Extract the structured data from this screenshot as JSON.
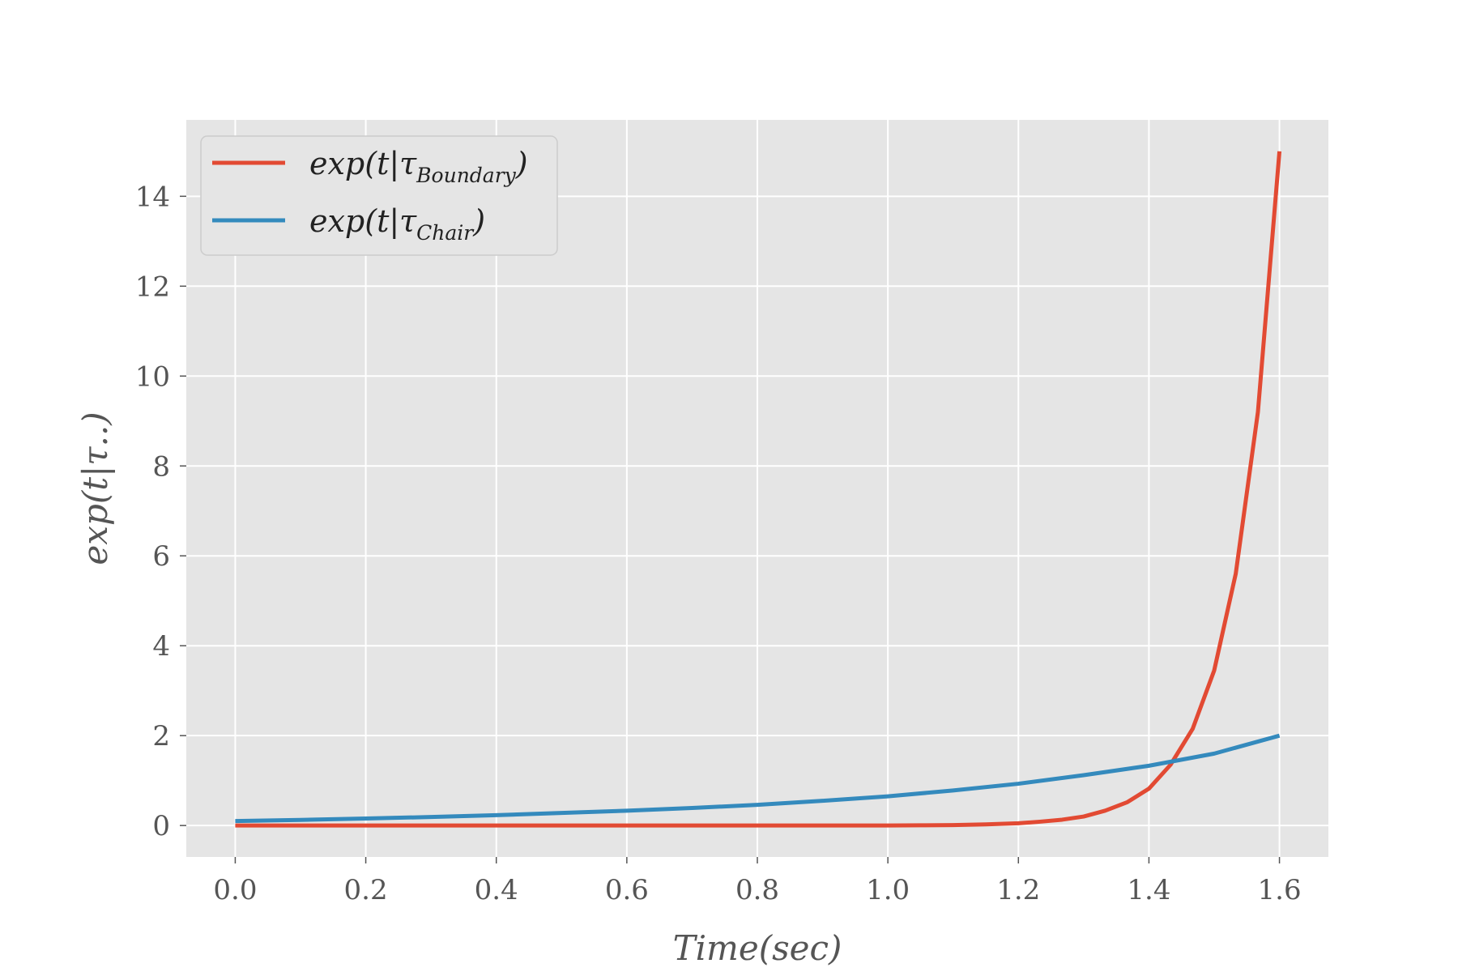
{
  "chart_data": {
    "type": "line",
    "title": "",
    "xlabel": "Time(sec)",
    "ylabel": "exp(t|τ..)",
    "xlim": [
      -0.075,
      1.675
    ],
    "ylim": [
      -0.7,
      15.7
    ],
    "xticks": [
      "0.0",
      "0.2",
      "0.4",
      "0.6",
      "0.8",
      "1.0",
      "1.2",
      "1.4",
      "1.6"
    ],
    "yticks": [
      "0",
      "2",
      "4",
      "6",
      "8",
      "10",
      "12",
      "14"
    ],
    "grid": true,
    "legend_position": "top-left",
    "series": [
      {
        "name": "exp(t|τBoundary)",
        "legend_main": "exp(t|τ",
        "legend_sub": "Boundary",
        "legend_close": ")",
        "color": "#E24A33",
        "x": [
          0.0,
          0.1,
          0.2,
          0.3,
          0.4,
          0.5,
          0.6,
          0.7,
          0.8,
          0.9,
          1.0,
          1.05,
          1.1,
          1.15,
          1.2,
          1.233,
          1.267,
          1.3,
          1.333,
          1.367,
          1.4,
          1.433,
          1.467,
          1.5,
          1.533,
          1.567,
          1.6
        ],
        "y": [
          0.0,
          0.0,
          0.0,
          0.0,
          0.0,
          0.0,
          0.0,
          0.0,
          0.0,
          0.0,
          0.0,
          0.005,
          0.01,
          0.025,
          0.05,
          0.085,
          0.13,
          0.2,
          0.33,
          0.52,
          0.82,
          1.35,
          2.15,
          3.45,
          5.6,
          9.2,
          15.0
        ]
      },
      {
        "name": "exp(t|τChair)",
        "legend_main": "exp(t|τ",
        "legend_sub": "Chair",
        "legend_close": ")",
        "color": "#348ABD",
        "x": [
          0.0,
          0.1,
          0.2,
          0.3,
          0.4,
          0.5,
          0.6,
          0.7,
          0.8,
          0.9,
          1.0,
          1.1,
          1.2,
          1.3,
          1.4,
          1.5,
          1.6
        ],
        "y": [
          0.1,
          0.125,
          0.155,
          0.19,
          0.23,
          0.28,
          0.33,
          0.39,
          0.46,
          0.55,
          0.65,
          0.78,
          0.93,
          1.12,
          1.33,
          1.6,
          2.0
        ]
      }
    ]
  }
}
